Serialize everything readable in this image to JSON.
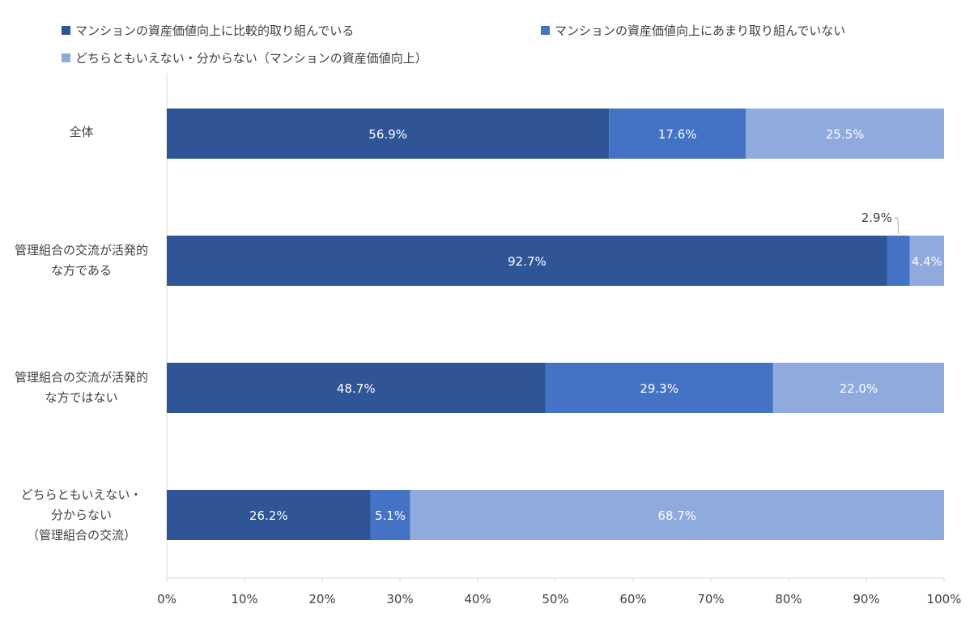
{
  "chart_data": {
    "type": "bar",
    "orientation": "horizontal",
    "stacked": true,
    "categories": [
      [
        "全体"
      ],
      [
        "管理組合の交流が活発的",
        "な方である"
      ],
      [
        "管理組合の交流が活発的",
        "な方ではない"
      ],
      [
        "どちらともいえない・",
        "分からない",
        "（管理組合の交流）"
      ]
    ],
    "series": [
      {
        "name": "マンションの資産価値向上に比較的取り組んでいる",
        "color": "#2F5597",
        "values": [
          56.9,
          92.7,
          48.7,
          26.2
        ],
        "labels": [
          "56.9%",
          "92.7%",
          "48.7%",
          "26.2%"
        ]
      },
      {
        "name": "マンションの資産価値向上にあまり取り組んでいない",
        "color": "#4472C4",
        "values": [
          17.6,
          2.9,
          29.3,
          5.1
        ],
        "labels": [
          "17.6%",
          "2.9%",
          "29.3%",
          "5.1%"
        ]
      },
      {
        "name": "どちらともいえない・分からない（マンションの資産価値向上）",
        "color": "#8FAADC",
        "values": [
          25.5,
          4.4,
          22.0,
          68.7
        ],
        "labels": [
          "25.5%",
          "4.4%",
          "22.0%",
          "68.7%"
        ]
      }
    ],
    "xlim": [
      0,
      100
    ],
    "xticks": [
      "0%",
      "10%",
      "20%",
      "30%",
      "40%",
      "50%",
      "60%",
      "70%",
      "80%",
      "90%",
      "100%"
    ],
    "legend_position": "top",
    "grid": false
  }
}
